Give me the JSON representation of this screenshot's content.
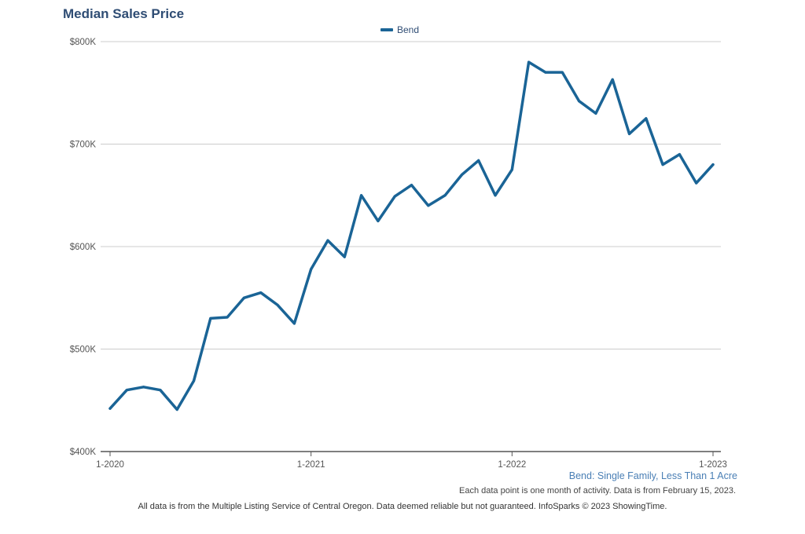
{
  "chart_data": {
    "type": "line",
    "title": "Median Sales Price",
    "legend": [
      "Bend"
    ],
    "legend_position": "top-center",
    "subtitle": "Bend: Single Family, Less Than 1 Acre",
    "note": "Each data point is one month of activity. Data is from February 15, 2023.",
    "footer": "All data is from the Multiple Listing Service of Central Oregon. Data deemed reliable but not guaranteed. InfoSparks © 2023 ShowingTime.",
    "ylim": [
      400000,
      800000
    ],
    "yticks": [
      400000,
      500000,
      600000,
      700000,
      800000
    ],
    "ytick_labels": [
      "$400K",
      "$500K",
      "$600K",
      "$700K",
      "$800K"
    ],
    "xticks": [
      "1-2020",
      "1-2021",
      "1-2022",
      "1-2023"
    ],
    "grid": true,
    "color": "#1a6496",
    "series": [
      {
        "name": "Bend",
        "values": [
          442000,
          460000,
          463000,
          460000,
          441000,
          469000,
          530000,
          531000,
          550000,
          555000,
          543000,
          525000,
          578000,
          606000,
          590000,
          650000,
          625000,
          649000,
          660000,
          640000,
          650000,
          670000,
          684000,
          650000,
          675000,
          780000,
          770000,
          770000,
          742000,
          730000,
          763000,
          710000,
          725000,
          680000,
          690000,
          662000,
          680000
        ]
      }
    ]
  }
}
